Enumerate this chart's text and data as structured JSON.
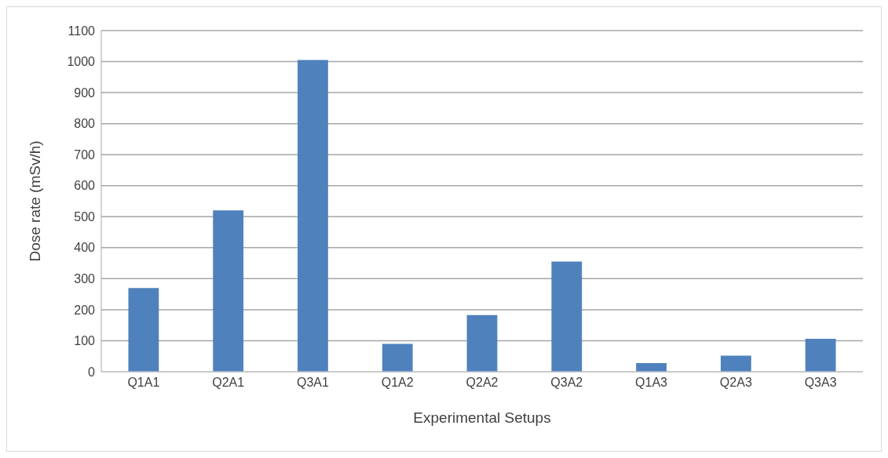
{
  "chart_data": {
    "type": "bar",
    "xlabel": "Experimental Setups",
    "ylabel": "Dose  rate (mSv/h)",
    "categories": [
      "Q1A1",
      "Q2A1",
      "Q3A1",
      "Q1A2",
      "Q2A2",
      "Q3A2",
      "Q1A3",
      "Q2A3",
      "Q3A3"
    ],
    "values": [
      270,
      520,
      1005,
      90,
      183,
      355,
      28,
      52,
      106
    ],
    "color": "#4f81bd",
    "ylim": [
      0,
      1100
    ],
    "yticks": [
      0,
      100,
      200,
      300,
      400,
      500,
      600,
      700,
      800,
      900,
      1000,
      1100
    ],
    "grid": "y",
    "legend": false
  }
}
